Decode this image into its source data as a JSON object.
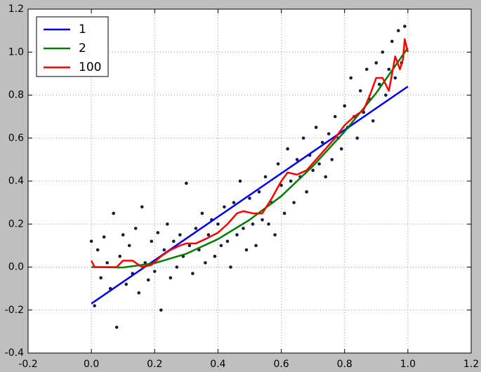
{
  "chart_data": {
    "type": "line",
    "xlim": [
      -0.2,
      1.2
    ],
    "ylim": [
      -0.4,
      1.2
    ],
    "xticks": [
      -0.2,
      {
        "value": 0,
        "label": "0.0"
      },
      0.2,
      0.4,
      0.6,
      0.8,
      {
        "value": 1,
        "label": "1.0"
      },
      1.2
    ],
    "yticks": [
      -0.4,
      -0.2,
      {
        "value": 0,
        "label": "0.0"
      },
      0.2,
      0.4,
      0.6,
      0.8,
      {
        "value": 1,
        "label": "1.0"
      },
      1.2
    ],
    "grid": true,
    "legend": "upper left",
    "points": {
      "color": "#1a1a40",
      "x": [
        0,
        0.01,
        0.02,
        0.03,
        0.04,
        0.05,
        0.06,
        0.07,
        0.08,
        0.09,
        0.1,
        0.11,
        0.12,
        0.13,
        0.14,
        0.15,
        0.16,
        0.17,
        0.18,
        0.19,
        0.2,
        0.21,
        0.22,
        0.23,
        0.24,
        0.25,
        0.26,
        0.27,
        0.28,
        0.29,
        0.3,
        0.31,
        0.32,
        0.33,
        0.34,
        0.35,
        0.36,
        0.37,
        0.38,
        0.39,
        0.4,
        0.41,
        0.42,
        0.43,
        0.44,
        0.45,
        0.46,
        0.47,
        0.48,
        0.49,
        0.5,
        0.51,
        0.52,
        0.53,
        0.54,
        0.55,
        0.56,
        0.57,
        0.58,
        0.59,
        0.6,
        0.61,
        0.62,
        0.63,
        0.64,
        0.65,
        0.66,
        0.67,
        0.68,
        0.69,
        0.7,
        0.71,
        0.72,
        0.73,
        0.74,
        0.75,
        0.76,
        0.77,
        0.78,
        0.79,
        0.8,
        0.81,
        0.82,
        0.83,
        0.84,
        0.85,
        0.86,
        0.87,
        0.88,
        0.89,
        0.9,
        0.91,
        0.92,
        0.93,
        0.94,
        0.95,
        0.96,
        0.97,
        0.98,
        0.99
      ],
      "values": [
        0.12,
        -0.18,
        0.08,
        -0.05,
        0.14,
        0.02,
        -0.1,
        0.25,
        -0.28,
        0.05,
        0.15,
        -0.08,
        0.1,
        -0.03,
        0.18,
        -0.12,
        0.28,
        0.02,
        -0.06,
        0.12,
        -0.02,
        0.16,
        -0.2,
        0.08,
        0.2,
        -0.05,
        0.12,
        0,
        0.15,
        0.05,
        0.39,
        0.1,
        -0.03,
        0.18,
        0.08,
        0.25,
        0.02,
        0.15,
        0.22,
        0.05,
        0.2,
        0.1,
        0.28,
        0.12,
        0,
        0.3,
        0.15,
        0.4,
        0.18,
        0.08,
        0.32,
        0.2,
        0.1,
        0.35,
        0.22,
        0.42,
        0.2,
        0.3,
        0.15,
        0.48,
        0.38,
        0.25,
        0.55,
        0.4,
        0.3,
        0.5,
        0.42,
        0.6,
        0.35,
        0.52,
        0.45,
        0.65,
        0.48,
        0.58,
        0.42,
        0.62,
        0.5,
        0.7,
        0.6,
        0.55,
        0.75,
        0.65,
        0.88,
        0.7,
        0.6,
        0.82,
        0.72,
        0.92,
        0.78,
        0.68,
        0.95,
        0.85,
        1,
        0.8,
        0.92,
        1.05,
        0.88,
        1.1,
        0.95,
        1.12
      ]
    },
    "series": [
      {
        "name": "1",
        "color": "#0000ff",
        "x": [
          0,
          1
        ],
        "values": [
          -0.17,
          0.84
        ]
      },
      {
        "name": "2",
        "color": "#008000",
        "x": [
          0,
          0.1,
          0.2,
          0.3,
          0.4,
          0.5,
          0.6,
          0.7,
          0.8,
          0.9,
          1
        ],
        "values": [
          0,
          -0.002,
          0.018,
          0.062,
          0.13,
          0.22,
          0.33,
          0.47,
          0.63,
          0.81,
          1.02
        ]
      },
      {
        "name": "100",
        "color": "#ff0000",
        "x": [
          0,
          0.01,
          0.05,
          0.08,
          0.1,
          0.13,
          0.16,
          0.19,
          0.22,
          0.25,
          0.28,
          0.3,
          0.33,
          0.36,
          0.4,
          0.43,
          0.46,
          0.48,
          0.51,
          0.54,
          0.57,
          0.6,
          0.62,
          0.65,
          0.68,
          0.71,
          0.74,
          0.77,
          0.8,
          0.83,
          0.86,
          0.88,
          0.9,
          0.92,
          0.94,
          0.96,
          0.975,
          0.985,
          0.99,
          1
        ],
        "values": [
          0.03,
          0,
          0,
          0,
          0.03,
          0.03,
          0,
          0.01,
          0.05,
          0.08,
          0.1,
          0.11,
          0.11,
          0.13,
          0.16,
          0.2,
          0.25,
          0.26,
          0.25,
          0.25,
          0.32,
          0.4,
          0.44,
          0.43,
          0.45,
          0.5,
          0.55,
          0.6,
          0.66,
          0.7,
          0.73,
          0.8,
          0.88,
          0.88,
          0.82,
          0.98,
          0.92,
          0.97,
          1.06,
          1
        ]
      }
    ]
  }
}
